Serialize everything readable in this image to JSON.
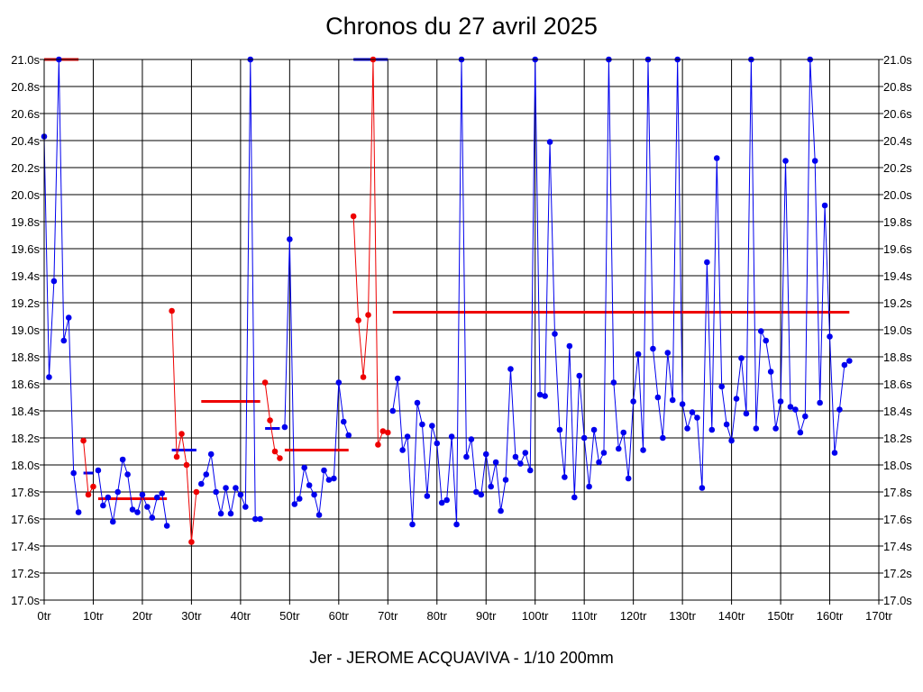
{
  "chart_data": {
    "type": "line",
    "title": "Chronos du 27 avril 2025",
    "footer": "Jer - JEROME ACQUAVIVA - 1/10 200mm",
    "xlim": [
      0,
      170
    ],
    "ylim": [
      17.0,
      21.0
    ],
    "grid": true,
    "x_ticks": [
      {
        "value": 0,
        "label": "0tr"
      },
      {
        "value": 10,
        "label": "10tr"
      },
      {
        "value": 20,
        "label": "20tr"
      },
      {
        "value": 30,
        "label": "30tr"
      },
      {
        "value": 40,
        "label": "40tr"
      },
      {
        "value": 50,
        "label": "50tr"
      },
      {
        "value": 60,
        "label": "60tr"
      },
      {
        "value": 70,
        "label": "70tr"
      },
      {
        "value": 80,
        "label": "80tr"
      },
      {
        "value": 90,
        "label": "90tr"
      },
      {
        "value": 100,
        "label": "100tr"
      },
      {
        "value": 110,
        "label": "110tr"
      },
      {
        "value": 120,
        "label": "120tr"
      },
      {
        "value": 130,
        "label": "130tr"
      },
      {
        "value": 140,
        "label": "140tr"
      },
      {
        "value": 150,
        "label": "150tr"
      },
      {
        "value": 160,
        "label": "160tr"
      },
      {
        "value": 170,
        "label": "170tr"
      }
    ],
    "y_ticks": [
      {
        "value": 17.0,
        "label": "17.0s"
      },
      {
        "value": 17.2,
        "label": "17.2s"
      },
      {
        "value": 17.4,
        "label": "17.4s"
      },
      {
        "value": 17.6,
        "label": "17.6s"
      },
      {
        "value": 17.8,
        "label": "17.8s"
      },
      {
        "value": 18.0,
        "label": "18.0s"
      },
      {
        "value": 18.2,
        "label": "18.2s"
      },
      {
        "value": 18.4,
        "label": "18.4s"
      },
      {
        "value": 18.6,
        "label": "18.6s"
      },
      {
        "value": 18.8,
        "label": "18.8s"
      },
      {
        "value": 19.0,
        "label": "19.0s"
      },
      {
        "value": 19.2,
        "label": "19.2s"
      },
      {
        "value": 19.4,
        "label": "19.4s"
      },
      {
        "value": 19.6,
        "label": "19.6s"
      },
      {
        "value": 19.8,
        "label": "19.8s"
      },
      {
        "value": 20.0,
        "label": "20.0s"
      },
      {
        "value": 20.2,
        "label": "20.2s"
      },
      {
        "value": 20.4,
        "label": "20.4s"
      },
      {
        "value": 20.6,
        "label": "20.6s"
      },
      {
        "value": 20.8,
        "label": "20.8s"
      },
      {
        "value": 21.0,
        "label": "21.0s"
      }
    ],
    "series": [
      {
        "color": "#0000ee",
        "points": [
          [
            0,
            20.43
          ],
          [
            1,
            18.65
          ],
          [
            2,
            19.36
          ],
          [
            3,
            21.0
          ],
          [
            4,
            18.92
          ],
          [
            5,
            19.09
          ],
          [
            6,
            17.94
          ],
          [
            7,
            17.65
          ]
        ]
      },
      {
        "color": "#ee0000",
        "points": [
          [
            8,
            18.18
          ],
          [
            9,
            17.78
          ],
          [
            10,
            17.84
          ]
        ]
      },
      {
        "color": "#0000ee",
        "points": [
          [
            11,
            17.96
          ],
          [
            12,
            17.7
          ],
          [
            13,
            17.76
          ],
          [
            14,
            17.58
          ],
          [
            15,
            17.8
          ],
          [
            16,
            18.04
          ],
          [
            17,
            17.93
          ],
          [
            18,
            17.67
          ],
          [
            19,
            17.65
          ],
          [
            20,
            17.78
          ],
          [
            21,
            17.69
          ],
          [
            22,
            17.61
          ],
          [
            23,
            17.76
          ],
          [
            24,
            17.79
          ],
          [
            25,
            17.55
          ]
        ]
      },
      {
        "color": "#ee0000",
        "points": [
          [
            26,
            19.14
          ],
          [
            27,
            18.06
          ],
          [
            28,
            18.23
          ],
          [
            29,
            18.0
          ],
          [
            30,
            17.43
          ],
          [
            31,
            17.8
          ]
        ]
      },
      {
        "color": "#0000ee",
        "points": [
          [
            32,
            17.86
          ],
          [
            33,
            17.93
          ],
          [
            34,
            18.08
          ],
          [
            35,
            17.8
          ],
          [
            36,
            17.64
          ],
          [
            37,
            17.83
          ],
          [
            38,
            17.64
          ],
          [
            39,
            17.83
          ],
          [
            40,
            17.78
          ],
          [
            41,
            17.69
          ],
          [
            42,
            21.0
          ],
          [
            43,
            17.6
          ],
          [
            44,
            17.6
          ]
        ]
      },
      {
        "color": "#ee0000",
        "points": [
          [
            45,
            18.61
          ],
          [
            46,
            18.33
          ],
          [
            47,
            18.1
          ],
          [
            48,
            18.05
          ]
        ]
      },
      {
        "color": "#0000ee",
        "points": [
          [
            49,
            18.28
          ],
          [
            50,
            19.67
          ],
          [
            51,
            17.71
          ],
          [
            52,
            17.75
          ],
          [
            53,
            17.98
          ],
          [
            54,
            17.85
          ],
          [
            55,
            17.78
          ],
          [
            56,
            17.63
          ],
          [
            57,
            17.96
          ],
          [
            58,
            17.89
          ],
          [
            59,
            17.9
          ],
          [
            60,
            18.61
          ],
          [
            61,
            18.32
          ],
          [
            62,
            18.22
          ]
        ]
      },
      {
        "color": "#ee0000",
        "points": [
          [
            63,
            19.84
          ],
          [
            64,
            19.07
          ],
          [
            65,
            18.65
          ],
          [
            66,
            19.11
          ],
          [
            67,
            21.0
          ],
          [
            68,
            18.15
          ],
          [
            69,
            18.25
          ],
          [
            70,
            18.24
          ]
        ]
      },
      {
        "color": "#0000ee",
        "points": [
          [
            71,
            18.4
          ],
          [
            72,
            18.64
          ],
          [
            73,
            18.11
          ],
          [
            74,
            18.21
          ],
          [
            75,
            17.56
          ],
          [
            76,
            18.46
          ],
          [
            77,
            18.3
          ],
          [
            78,
            17.77
          ],
          [
            79,
            18.29
          ],
          [
            80,
            18.16
          ],
          [
            81,
            17.72
          ],
          [
            82,
            17.74
          ],
          [
            83,
            18.21
          ],
          [
            84,
            17.56
          ],
          [
            85,
            21.0
          ],
          [
            86,
            18.06
          ],
          [
            87,
            18.19
          ],
          [
            88,
            17.8
          ],
          [
            89,
            17.78
          ],
          [
            90,
            18.08
          ],
          [
            91,
            17.84
          ],
          [
            92,
            18.02
          ],
          [
            93,
            17.66
          ],
          [
            94,
            17.89
          ],
          [
            95,
            18.71
          ],
          [
            96,
            18.06
          ],
          [
            97,
            18.01
          ],
          [
            98,
            18.09
          ],
          [
            99,
            17.96
          ],
          [
            100,
            21.0
          ],
          [
            101,
            18.52
          ],
          [
            102,
            18.51
          ],
          [
            103,
            20.39
          ],
          [
            104,
            18.97
          ],
          [
            105,
            18.26
          ],
          [
            106,
            17.91
          ],
          [
            107,
            18.88
          ],
          [
            108,
            17.76
          ],
          [
            109,
            18.66
          ],
          [
            110,
            18.2
          ],
          [
            111,
            17.84
          ],
          [
            112,
            18.26
          ],
          [
            113,
            18.02
          ],
          [
            114,
            18.09
          ],
          [
            115,
            21.0
          ],
          [
            116,
            18.61
          ],
          [
            117,
            18.12
          ],
          [
            118,
            18.24
          ],
          [
            119,
            17.9
          ],
          [
            120,
            18.47
          ],
          [
            121,
            18.82
          ],
          [
            122,
            18.11
          ],
          [
            123,
            21.0
          ],
          [
            124,
            18.86
          ],
          [
            125,
            18.5
          ],
          [
            126,
            18.2
          ],
          [
            127,
            18.83
          ],
          [
            128,
            18.48
          ],
          [
            129,
            21.0
          ],
          [
            130,
            18.45
          ],
          [
            131,
            18.27
          ],
          [
            132,
            18.39
          ],
          [
            133,
            18.35
          ],
          [
            134,
            17.83
          ],
          [
            135,
            19.5
          ],
          [
            136,
            18.26
          ],
          [
            137,
            20.27
          ],
          [
            138,
            18.58
          ],
          [
            139,
            18.3
          ],
          [
            140,
            18.18
          ],
          [
            141,
            18.49
          ],
          [
            142,
            18.79
          ],
          [
            143,
            18.38
          ],
          [
            144,
            21.0
          ],
          [
            145,
            18.27
          ],
          [
            146,
            18.99
          ],
          [
            147,
            18.92
          ],
          [
            148,
            18.69
          ],
          [
            149,
            18.27
          ],
          [
            150,
            18.47
          ],
          [
            151,
            20.25
          ],
          [
            152,
            18.43
          ],
          [
            153,
            18.41
          ],
          [
            154,
            18.24
          ],
          [
            155,
            18.36
          ],
          [
            156,
            21.0
          ],
          [
            157,
            20.25
          ],
          [
            158,
            18.46
          ],
          [
            159,
            19.92
          ],
          [
            160,
            18.95
          ],
          [
            161,
            18.09
          ],
          [
            162,
            18.41
          ],
          [
            163,
            18.74
          ],
          [
            164,
            18.77
          ]
        ]
      }
    ],
    "segments": [
      {
        "color": "#ee0000",
        "x1": 0,
        "x2": 7,
        "y": 21.0
      },
      {
        "color": "#0000ee",
        "x1": 8,
        "x2": 10,
        "y": 17.94
      },
      {
        "color": "#ee0000",
        "x1": 11,
        "x2": 25,
        "y": 17.75
      },
      {
        "color": "#0000ee",
        "x1": 26,
        "x2": 31,
        "y": 18.11
      },
      {
        "color": "#ee0000",
        "x1": 32,
        "x2": 44,
        "y": 18.47
      },
      {
        "color": "#0000ee",
        "x1": 45,
        "x2": 48,
        "y": 18.27
      },
      {
        "color": "#ee0000",
        "x1": 49,
        "x2": 62,
        "y": 18.11
      },
      {
        "color": "#0000ee",
        "x1": 63,
        "x2": 70,
        "y": 21.0
      },
      {
        "color": "#ee0000",
        "x1": 71,
        "x2": 164,
        "y": 19.13
      }
    ]
  }
}
